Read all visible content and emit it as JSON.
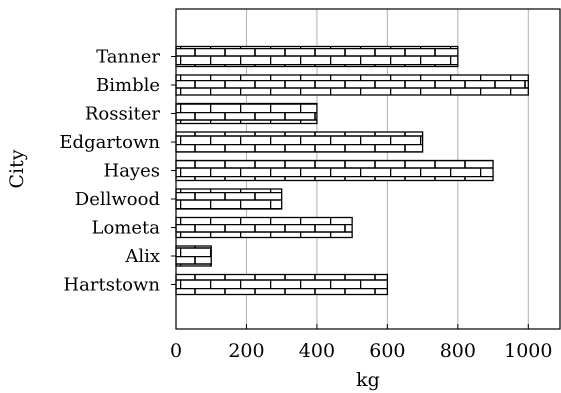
{
  "chart_data": {
    "type": "bar",
    "orientation": "horizontal",
    "title": "",
    "xlabel": "kg",
    "ylabel": "City",
    "categories": [
      "Tanner",
      "Bimble",
      "Rossiter",
      "Edgartown",
      "Hayes",
      "Dellwood",
      "Lometa",
      "Alix",
      "Hartstown"
    ],
    "values": [
      800,
      1000,
      400,
      700,
      900,
      300,
      500,
      100,
      600
    ],
    "xlim": [
      0,
      1090
    ],
    "xticks": [
      "0",
      "200",
      "400",
      "600",
      "800",
      "1000"
    ],
    "grid": "vertical",
    "legend": "none",
    "bar_fill": "brick pattern"
  }
}
